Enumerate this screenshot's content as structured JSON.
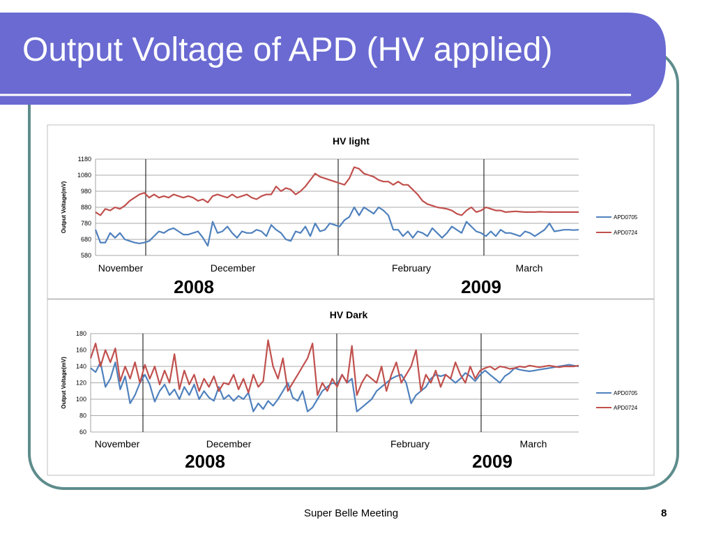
{
  "slide": {
    "title": "Output Voltage of APD (HV applied)",
    "footer": "Super Belle Meeting",
    "page_number": "8",
    "colors": {
      "banner": "#6a6ad2",
      "frame": "#5e8c8c",
      "series_blue": "#4f81bd",
      "series_red": "#c0504d"
    }
  },
  "chart_data": [
    {
      "type": "line",
      "title": "HV light",
      "ylabel": "Output Voltage(mV)",
      "ylim": [
        580,
        1180
      ],
      "yticks": [
        580,
        680,
        780,
        880,
        980,
        1080,
        1180
      ],
      "grid": true,
      "legend_position": "right",
      "months": [
        "November",
        "December",
        "February",
        "March"
      ],
      "years": [
        "2008",
        "2009"
      ],
      "x": [
        0,
        1,
        2,
        3,
        4,
        5,
        6,
        7,
        8,
        9,
        10,
        11,
        12,
        13,
        14,
        15,
        16,
        17,
        18,
        19,
        20,
        21,
        22,
        23,
        24,
        25,
        26,
        27,
        28,
        29,
        30,
        31,
        32,
        33,
        34,
        35,
        36,
        37,
        38,
        39,
        40,
        41,
        42,
        43,
        44,
        45,
        46,
        47,
        48,
        49,
        50,
        51,
        52,
        53,
        54,
        55,
        56,
        57,
        58,
        59,
        60,
        61,
        62,
        63,
        64,
        65,
        66,
        67,
        68,
        69,
        70,
        71,
        72,
        73,
        74,
        75,
        76,
        77,
        78,
        79,
        80,
        81,
        82,
        83,
        84,
        85,
        86,
        87,
        88,
        89,
        90,
        91,
        92,
        93,
        94,
        95,
        96,
        97,
        98,
        99
      ],
      "series": [
        {
          "name": "APD0705",
          "color": "#4f81bd",
          "values": [
            740,
            660,
            660,
            720,
            690,
            720,
            680,
            670,
            660,
            655,
            660,
            670,
            700,
            730,
            720,
            740,
            750,
            730,
            710,
            710,
            720,
            730,
            690,
            640,
            790,
            720,
            730,
            760,
            720,
            690,
            730,
            720,
            720,
            740,
            730,
            700,
            770,
            740,
            720,
            680,
            670,
            730,
            720,
            760,
            700,
            780,
            730,
            740,
            780,
            770,
            760,
            800,
            820,
            880,
            830,
            880,
            860,
            840,
            880,
            860,
            830,
            740,
            740,
            700,
            730,
            690,
            730,
            720,
            700,
            750,
            720,
            690,
            720,
            760,
            740,
            720,
            790,
            760,
            730,
            720,
            700,
            730,
            700,
            740,
            720,
            720,
            710,
            700,
            730,
            720,
            700,
            720,
            740,
            780,
            730,
            735,
            740,
            740,
            738,
            740
          ]
        },
        {
          "name": "APD0724",
          "color": "#c0504d",
          "values": [
            850,
            830,
            870,
            860,
            880,
            870,
            890,
            920,
            940,
            960,
            970,
            940,
            960,
            940,
            950,
            940,
            960,
            950,
            940,
            950,
            940,
            920,
            930,
            910,
            950,
            960,
            950,
            940,
            960,
            940,
            950,
            960,
            940,
            930,
            950,
            960,
            960,
            1010,
            980,
            1000,
            990,
            960,
            980,
            1010,
            1050,
            1090,
            1070,
            1060,
            1050,
            1040,
            1030,
            1020,
            1060,
            1130,
            1120,
            1090,
            1080,
            1070,
            1050,
            1040,
            1040,
            1020,
            1040,
            1020,
            1020,
            990,
            960,
            920,
            900,
            890,
            880,
            875,
            870,
            860,
            840,
            830,
            860,
            880,
            850,
            860,
            880,
            870,
            860,
            860,
            850,
            852,
            855,
            852,
            850,
            850,
            850,
            852,
            851,
            850,
            850,
            850,
            850,
            850,
            850,
            850
          ]
        }
      ]
    },
    {
      "type": "line",
      "title": "HV Dark",
      "ylabel": "Output Voltage(mV)",
      "ylim": [
        60,
        180
      ],
      "yticks": [
        60,
        80,
        100,
        120,
        140,
        160,
        180
      ],
      "grid": true,
      "legend_position": "right",
      "months": [
        "November",
        "December",
        "February",
        "March"
      ],
      "years": [
        "2008",
        "2009"
      ],
      "x": [
        0,
        1,
        2,
        3,
        4,
        5,
        6,
        7,
        8,
        9,
        10,
        11,
        12,
        13,
        14,
        15,
        16,
        17,
        18,
        19,
        20,
        21,
        22,
        23,
        24,
        25,
        26,
        27,
        28,
        29,
        30,
        31,
        32,
        33,
        34,
        35,
        36,
        37,
        38,
        39,
        40,
        41,
        42,
        43,
        44,
        45,
        46,
        47,
        48,
        49,
        50,
        51,
        52,
        53,
        54,
        55,
        56,
        57,
        58,
        59,
        60,
        61,
        62,
        63,
        64,
        65,
        66,
        67,
        68,
        69,
        70,
        71,
        72,
        73,
        74,
        75,
        76,
        77,
        78,
        79,
        80,
        81,
        82,
        83,
        84,
        85,
        86,
        87,
        88,
        89,
        90,
        91,
        92,
        93,
        94,
        95,
        96,
        97,
        98,
        99
      ],
      "series": [
        {
          "name": "APD0705",
          "color": "#4f81bd",
          "values": [
            138,
            133,
            145,
            115,
            125,
            145,
            112,
            128,
            95,
            105,
            120,
            130,
            118,
            97,
            110,
            118,
            105,
            112,
            100,
            115,
            105,
            118,
            100,
            110,
            102,
            98,
            115,
            100,
            105,
            98,
            104,
            100,
            108,
            85,
            95,
            88,
            98,
            92,
            100,
            110,
            120,
            102,
            98,
            110,
            85,
            90,
            100,
            110,
            115,
            120,
            118,
            130,
            120,
            125,
            85,
            90,
            95,
            100,
            110,
            115,
            120,
            125,
            128,
            130,
            120,
            95,
            105,
            110,
            115,
            125,
            130,
            128,
            130,
            125,
            120,
            125,
            132,
            128,
            122,
            130,
            135,
            130,
            125,
            120,
            128,
            132,
            138,
            136,
            135,
            134,
            135,
            136,
            137,
            138,
            139,
            140,
            141,
            142,
            141,
            140
          ]
        },
        {
          "name": "APD0724",
          "color": "#c0504d",
          "values": [
            150,
            168,
            140,
            160,
            145,
            162,
            122,
            140,
            125,
            145,
            120,
            142,
            125,
            140,
            118,
            135,
            120,
            155,
            112,
            135,
            118,
            130,
            110,
            125,
            115,
            128,
            110,
            120,
            118,
            130,
            112,
            125,
            108,
            130,
            115,
            122,
            172,
            140,
            125,
            150,
            110,
            120,
            130,
            140,
            150,
            168,
            105,
            120,
            110,
            125,
            115,
            130,
            120,
            165,
            105,
            120,
            130,
            125,
            120,
            140,
            110,
            130,
            145,
            120,
            130,
            140,
            160,
            110,
            130,
            120,
            135,
            115,
            130,
            125,
            145,
            130,
            120,
            140,
            125,
            135,
            138,
            140,
            136,
            140,
            139,
            137,
            138,
            140,
            139,
            141,
            140,
            139,
            140,
            141,
            140,
            139,
            140,
            140,
            140,
            141
          ]
        }
      ]
    }
  ]
}
